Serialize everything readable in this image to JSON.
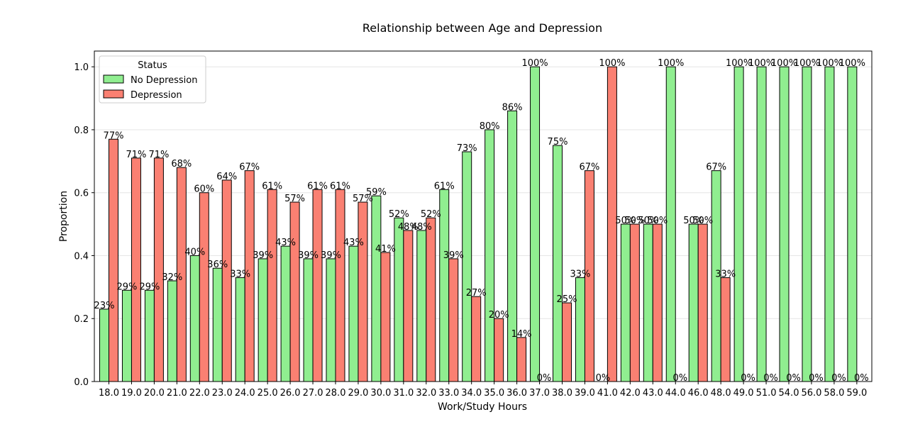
{
  "chart_data": {
    "type": "bar",
    "title": "Relationship between Age and Depression",
    "xlabel": "Work/Study Hours",
    "ylabel": "Proportion",
    "ylim": [
      0,
      1.05
    ],
    "yticks": [
      "0.0",
      "0.2",
      "0.4",
      "0.6",
      "0.8",
      "1.0"
    ],
    "grid": "horizontal",
    "legend": {
      "title": "Status",
      "placement": "top-left"
    },
    "categories": [
      "18.0",
      "19.0",
      "20.0",
      "21.0",
      "22.0",
      "23.0",
      "24.0",
      "25.0",
      "26.0",
      "27.0",
      "28.0",
      "29.0",
      "30.0",
      "31.0",
      "32.0",
      "33.0",
      "34.0",
      "35.0",
      "36.0",
      "37.0",
      "38.0",
      "39.0",
      "41.0",
      "42.0",
      "43.0",
      "44.0",
      "46.0",
      "48.0",
      "49.0",
      "51.0",
      "54.0",
      "56.0",
      "58.0",
      "59.0"
    ],
    "series": [
      {
        "name": "No Depression",
        "color": "#90ee90",
        "values": [
          0.23,
          0.29,
          0.29,
          0.32,
          0.4,
          0.36,
          0.33,
          0.39,
          0.43,
          0.39,
          0.39,
          0.43,
          0.59,
          0.52,
          0.48,
          0.61,
          0.73,
          0.8,
          0.86,
          1.0,
          0.75,
          0.33,
          0.0,
          0.5,
          0.5,
          1.0,
          0.5,
          0.67,
          1.0,
          1.0,
          1.0,
          1.0,
          1.0,
          1.0
        ],
        "labels": [
          "23%",
          "29%",
          "29%",
          "32%",
          "40%",
          "36%",
          "33%",
          "39%",
          "43%",
          "39%",
          "39%",
          "43%",
          "59%",
          "52%",
          "48%",
          "61%",
          "73%",
          "80%",
          "86%",
          "100%",
          "75%",
          "33%",
          "0%",
          "50%",
          "50%",
          "100%",
          "50%",
          "67%",
          "100%",
          "100%",
          "100%",
          "100%",
          "100%",
          "100%"
        ]
      },
      {
        "name": "Depression",
        "color": "#fa8072",
        "values": [
          0.77,
          0.71,
          0.71,
          0.68,
          0.6,
          0.64,
          0.67,
          0.61,
          0.57,
          0.61,
          0.61,
          0.57,
          0.41,
          0.48,
          0.52,
          0.39,
          0.27,
          0.2,
          0.14,
          0.0,
          0.25,
          0.67,
          1.0,
          0.5,
          0.5,
          0.0,
          0.5,
          0.33,
          0.0,
          0.0,
          0.0,
          0.0,
          0.0,
          0.0
        ],
        "labels": [
          "77%",
          "71%",
          "71%",
          "68%",
          "60%",
          "64%",
          "67%",
          "61%",
          "57%",
          "61%",
          "61%",
          "57%",
          "41%",
          "48%",
          "52%",
          "39%",
          "27%",
          "20%",
          "14%",
          "0%",
          "25%",
          "67%",
          "100%",
          "50%",
          "50%",
          "0%",
          "50%",
          "33%",
          "0%",
          "0%",
          "0%",
          "0%",
          "0%",
          "0%"
        ]
      }
    ]
  }
}
